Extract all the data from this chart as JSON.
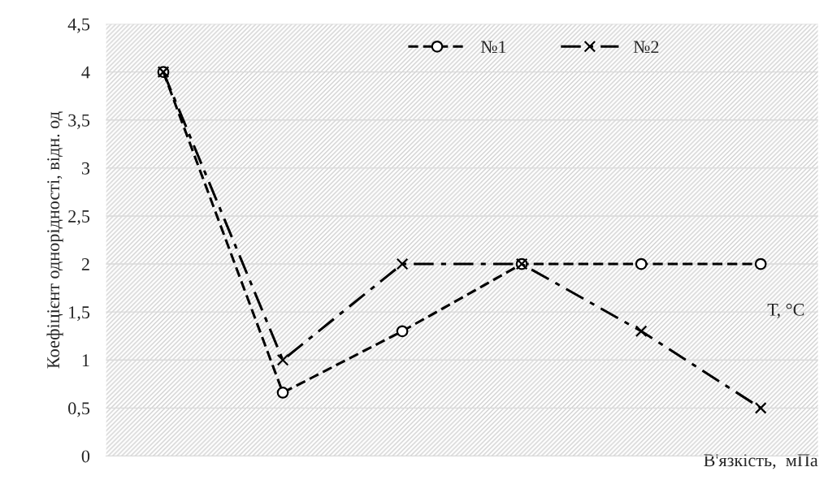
{
  "chart_data": {
    "type": "line",
    "ylabel": "Коефіцієнт однорідності, відн. од",
    "xlabel": "В'язкість,  мПа",
    "annotations": [
      "Т, °С"
    ],
    "categories": [
      null,
      null,
      null,
      null,
      null,
      null
    ],
    "series": [
      {
        "name": "№1",
        "color": "#000000",
        "values": [
          4,
          0.66,
          1.3,
          2,
          2,
          2
        ],
        "marker": "circle",
        "line_style": "dashed"
      },
      {
        "name": "№2",
        "color": "#000000",
        "values": [
          4,
          1,
          2,
          2,
          1.3,
          0.5
        ],
        "marker": "cross",
        "line_style": "dashdot"
      }
    ],
    "ylim": [
      0,
      4.5
    ],
    "yticks": [
      0,
      {
        "value": 0.5,
        "label": "0,5"
      },
      1,
      {
        "value": 1.5,
        "label": "1,5"
      },
      2,
      {
        "value": 2.5,
        "label": "2,5"
      },
      3,
      {
        "value": 3.5,
        "label": "3,5"
      },
      4,
      {
        "value": 4.5,
        "label": "4,5"
      }
    ],
    "grid": "y",
    "legend": "top right"
  }
}
